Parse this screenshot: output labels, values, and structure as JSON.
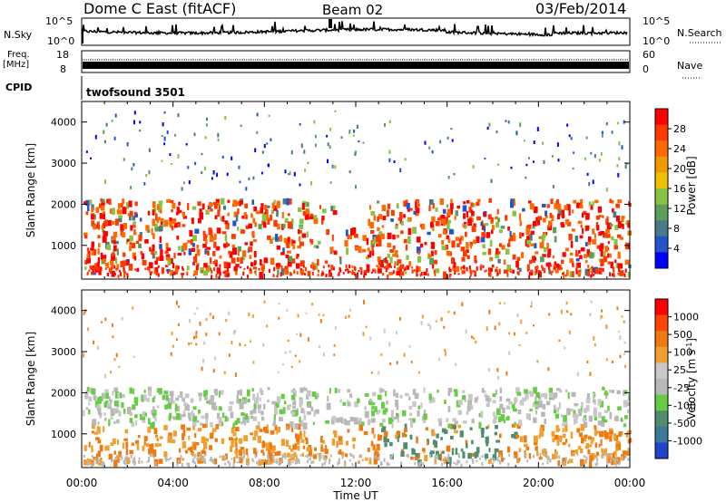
{
  "header": {
    "title": "Dome C East (fitACF)",
    "beam": "Beam 02",
    "date": "03/Feb/2014"
  },
  "top_panels": {
    "nsky_label": "N.Sky",
    "nsky_ticks": [
      "10^5",
      "10^0"
    ],
    "nsearch_label": "N.Search",
    "nsearch_ticks": [
      "10^5",
      "10^0"
    ],
    "freq_label": "Freq.",
    "freq_unit": "[MHz]",
    "freq_ticks": [
      "18",
      "8"
    ],
    "nave_label": "Nave",
    "nave_ticks": [
      "60",
      "0"
    ],
    "cpid_label": "CPID",
    "cpid_value": "twofsound 3501"
  },
  "colors": {
    "power_scale": [
      "#0000ff",
      "#2255cc",
      "#4a7a8a",
      "#5aa05a",
      "#88c444",
      "#f0c000",
      "#f09a00",
      "#ff6a00",
      "#ff3a00",
      "#ff0000"
    ],
    "velocity_scale": [
      "#2244cc",
      "#3a7a9a",
      "#4e8e6e",
      "#66cc44",
      "#b8b8b8",
      "#c8c8c8",
      "#f0a030",
      "#f07a10",
      "#ff4400",
      "#ff0000"
    ]
  },
  "chart_data": [
    {
      "type": "heatmap",
      "name": "power-panel",
      "ylabel": "Slant Range [km]",
      "xlabel": "",
      "y_ticks": [
        "1000",
        "2000",
        "3000",
        "4000"
      ],
      "colorbar_label": "Power [dB]",
      "colorbar_ticks": [
        "28",
        "24",
        "20",
        "16",
        "12",
        "8",
        "4"
      ],
      "xlim_hours": [
        0,
        24
      ],
      "ylim_km": [
        180,
        4500
      ]
    },
    {
      "type": "heatmap",
      "name": "velocity-panel",
      "ylabel": "Slant Range [km]",
      "xlabel": "Time UT",
      "x_ticks": [
        "00:00",
        "04:00",
        "08:00",
        "12:00",
        "16:00",
        "20:00",
        "00:00"
      ],
      "y_ticks": [
        "1000",
        "2000",
        "3000",
        "4000"
      ],
      "colorbar_label": "Velocity [m s^-1]",
      "colorbar_ticks": [
        "1000",
        "500",
        "100",
        "25",
        "-25",
        "-100",
        "-500",
        "-1000"
      ],
      "xlim_hours": [
        0,
        24
      ],
      "ylim_km": [
        180,
        4500
      ]
    }
  ]
}
